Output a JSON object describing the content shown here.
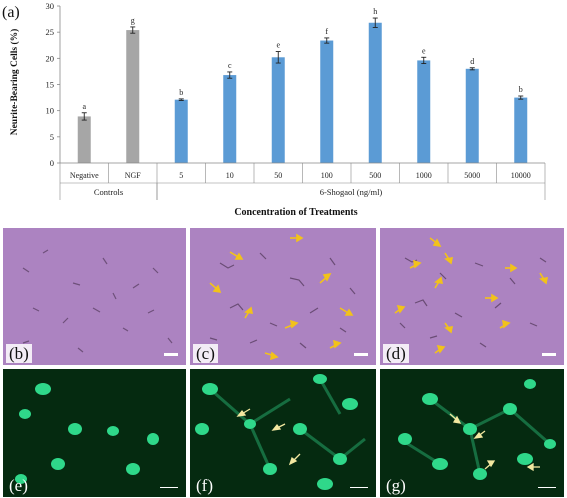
{
  "chart_data": {
    "type": "bar",
    "panel_label": "(a)",
    "ylabel": "Neurite-Bearing Cells (%)",
    "xlabel": "Concentration of  Treatments",
    "ylim": [
      0,
      30
    ],
    "yticks": [
      "0",
      "5",
      "10",
      "15",
      "20",
      "25",
      "30"
    ],
    "grid": false,
    "categories": [
      "Negative",
      "NGF",
      "5",
      "10",
      "50",
      "100",
      "500",
      "1000",
      "5000",
      "10000"
    ],
    "values": [
      8.9,
      25.4,
      12.1,
      16.8,
      20.2,
      23.4,
      26.8,
      19.6,
      18.0,
      12.5
    ],
    "errors": [
      0.7,
      0.6,
      0.15,
      0.6,
      1.1,
      0.5,
      0.9,
      0.6,
      0.2,
      0.3
    ],
    "letters": [
      "a",
      "g",
      "b",
      "c",
      "e",
      "f",
      "h",
      "e",
      "d",
      "b"
    ],
    "colors": [
      "#a6a6a6",
      "#a6a6a6",
      "#5b9bd5",
      "#5b9bd5",
      "#5b9bd5",
      "#5b9bd5",
      "#5b9bd5",
      "#5b9bd5",
      "#5b9bd5",
      "#5b9bd5"
    ],
    "groups": [
      {
        "label": "Controls",
        "from": 0,
        "to": 1
      },
      {
        "label": "6-Shogaol (ng/ml)",
        "from": 2,
        "to": 9
      }
    ]
  },
  "panels": {
    "b": {
      "label": "(b)"
    },
    "c": {
      "label": "(c)"
    },
    "d": {
      "label": "(d)"
    },
    "e": {
      "label": "(e)"
    },
    "f": {
      "label": "(f)"
    },
    "g": {
      "label": "(g)"
    }
  },
  "colors": {
    "brightfield": "#b48cc8",
    "fluorescence_bg": "#052a10",
    "nucleus": "#2fd88a",
    "arrow_brightfield": "#f2c21a",
    "arrow_fluorescence": "#f3e8a0"
  }
}
